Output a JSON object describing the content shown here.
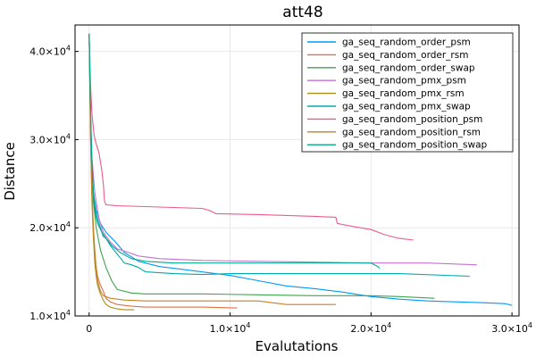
{
  "chart_data": {
    "type": "line",
    "title": "att48",
    "xlabel": "Evalutations",
    "ylabel": "Distance",
    "xlim": [
      -1000,
      30500
    ],
    "ylim": [
      10000,
      43000
    ],
    "x_ticks": [
      {
        "value": 0,
        "label": "0"
      },
      {
        "value": 10000,
        "label": "1.0×10",
        "exp": "4"
      },
      {
        "value": 20000,
        "label": "2.0×10",
        "exp": "4"
      },
      {
        "value": 30000,
        "label": "3.0×10",
        "exp": "4"
      }
    ],
    "y_ticks": [
      {
        "value": 10000,
        "label": "1.0×10",
        "exp": "4"
      },
      {
        "value": 20000,
        "label": "2.0×10",
        "exp": "4"
      },
      {
        "value": 30000,
        "label": "3.0×10",
        "exp": "4"
      },
      {
        "value": 40000,
        "label": "4.0×10",
        "exp": "4"
      }
    ],
    "grid": true,
    "legend_position": "top-right",
    "series": [
      {
        "name": "ga_seq_random_order_psm",
        "color": "#009AFA",
        "points": [
          [
            0,
            42000
          ],
          [
            100,
            33000
          ],
          [
            200,
            27000
          ],
          [
            300,
            24000
          ],
          [
            500,
            22000
          ],
          [
            800,
            20500
          ],
          [
            1200,
            19500
          ],
          [
            1800,
            18500
          ],
          [
            2500,
            17200
          ],
          [
            3500,
            16200
          ],
          [
            5000,
            15600
          ],
          [
            7000,
            15200
          ],
          [
            10000,
            14600
          ],
          [
            12000,
            14000
          ],
          [
            14000,
            13400
          ],
          [
            16000,
            13100
          ],
          [
            18000,
            12700
          ],
          [
            20000,
            12200
          ],
          [
            22000,
            11900
          ],
          [
            24000,
            11700
          ],
          [
            26000,
            11600
          ],
          [
            28000,
            11500
          ],
          [
            29500,
            11400
          ],
          [
            30000,
            11200
          ]
        ]
      },
      {
        "name": "ga_seq_random_order_rsm",
        "color": "#E26F46",
        "points": [
          [
            0,
            42000
          ],
          [
            100,
            31000
          ],
          [
            200,
            24000
          ],
          [
            300,
            20000
          ],
          [
            400,
            17000
          ],
          [
            500,
            15500
          ],
          [
            600,
            14500
          ],
          [
            800,
            13500
          ],
          [
            1000,
            12800
          ],
          [
            1200,
            12000
          ],
          [
            1500,
            11600
          ],
          [
            2000,
            11300
          ],
          [
            3000,
            11100
          ],
          [
            4000,
            11000
          ],
          [
            8000,
            11000
          ],
          [
            10500,
            10900
          ]
        ]
      },
      {
        "name": "ga_seq_random_order_swap",
        "color": "#3EA44E",
        "points": [
          [
            0,
            42000
          ],
          [
            100,
            32000
          ],
          [
            200,
            27000
          ],
          [
            300,
            23000
          ],
          [
            500,
            20000
          ],
          [
            800,
            17500
          ],
          [
            1200,
            15500
          ],
          [
            1600,
            14000
          ],
          [
            2000,
            13000
          ],
          [
            3000,
            12600
          ],
          [
            4000,
            12500
          ],
          [
            8000,
            12500
          ],
          [
            12000,
            12400
          ],
          [
            16000,
            12300
          ],
          [
            18000,
            12300
          ],
          [
            20000,
            12300
          ],
          [
            22000,
            12200
          ],
          [
            24500,
            12000
          ]
        ]
      },
      {
        "name": "ga_seq_random_pmx_psm",
        "color": "#C271D2",
        "points": [
          [
            0,
            42000
          ],
          [
            100,
            33000
          ],
          [
            200,
            28000
          ],
          [
            400,
            24000
          ],
          [
            700,
            21000
          ],
          [
            1000,
            19500
          ],
          [
            1500,
            18400
          ],
          [
            2000,
            17600
          ],
          [
            2800,
            17200
          ],
          [
            3500,
            16800
          ],
          [
            5000,
            16500
          ],
          [
            8000,
            16300
          ],
          [
            12000,
            16200
          ],
          [
            16000,
            16100
          ],
          [
            20000,
            16000
          ],
          [
            24000,
            16000
          ],
          [
            27500,
            15800
          ]
        ]
      },
      {
        "name": "ga_seq_random_pmx_rsm",
        "color": "#AC8D18",
        "points": [
          [
            0,
            42000
          ],
          [
            100,
            30000
          ],
          [
            200,
            23000
          ],
          [
            300,
            19000
          ],
          [
            400,
            16000
          ],
          [
            500,
            14500
          ],
          [
            600,
            13500
          ],
          [
            800,
            12500
          ],
          [
            1000,
            11800
          ],
          [
            1200,
            11300
          ],
          [
            1500,
            11000
          ],
          [
            2000,
            10800
          ],
          [
            2500,
            10700
          ],
          [
            3200,
            10700
          ]
        ]
      },
      {
        "name": "ga_seq_random_pmx_swap",
        "color": "#00A9AD",
        "points": [
          [
            0,
            42000
          ],
          [
            100,
            32000
          ],
          [
            200,
            27000
          ],
          [
            300,
            24000
          ],
          [
            500,
            21500
          ],
          [
            800,
            20000
          ],
          [
            1000,
            19000
          ],
          [
            1200,
            18800
          ],
          [
            1500,
            18000
          ],
          [
            2000,
            17000
          ],
          [
            2500,
            16000
          ],
          [
            3000,
            15800
          ],
          [
            3500,
            15500
          ],
          [
            4000,
            15000
          ],
          [
            6000,
            14800
          ],
          [
            8000,
            14700
          ],
          [
            10000,
            14800
          ],
          [
            14000,
            14800
          ],
          [
            18000,
            14800
          ],
          [
            22000,
            14800
          ],
          [
            27000,
            14500
          ]
        ]
      },
      {
        "name": "ga_seq_random_position_psm",
        "color": "#EC5A8A",
        "points": [
          [
            0,
            42000
          ],
          [
            100,
            36000
          ],
          [
            200,
            33000
          ],
          [
            350,
            30500
          ],
          [
            500,
            29500
          ],
          [
            700,
            28500
          ],
          [
            900,
            26500
          ],
          [
            1000,
            25000
          ],
          [
            1100,
            23000
          ],
          [
            1200,
            22600
          ],
          [
            2000,
            22500
          ],
          [
            4000,
            22400
          ],
          [
            6000,
            22300
          ],
          [
            8000,
            22200
          ],
          [
            8500,
            22000
          ],
          [
            9000,
            21600
          ],
          [
            12000,
            21500
          ],
          [
            14000,
            21400
          ],
          [
            16000,
            21300
          ],
          [
            17500,
            21200
          ],
          [
            17600,
            20500
          ],
          [
            18500,
            20200
          ],
          [
            20000,
            19800
          ],
          [
            21000,
            19200
          ],
          [
            22000,
            18800
          ],
          [
            23000,
            18600
          ]
        ]
      },
      {
        "name": "ga_seq_random_position_rsm",
        "color": "#C68226",
        "points": [
          [
            0,
            42000
          ],
          [
            100,
            30000
          ],
          [
            200,
            24000
          ],
          [
            300,
            20000
          ],
          [
            400,
            17500
          ],
          [
            500,
            15500
          ],
          [
            600,
            14000
          ],
          [
            800,
            12800
          ],
          [
            1000,
            12300
          ],
          [
            1500,
            12000
          ],
          [
            2500,
            11800
          ],
          [
            4000,
            11700
          ],
          [
            6000,
            11700
          ],
          [
            8000,
            11700
          ],
          [
            12000,
            11700
          ],
          [
            14000,
            11300
          ],
          [
            17500,
            11300
          ]
        ]
      },
      {
        "name": "ga_seq_random_position_swap",
        "color": "#00A98D",
        "points": [
          [
            0,
            42000
          ],
          [
            100,
            33000
          ],
          [
            200,
            27500
          ],
          [
            300,
            24000
          ],
          [
            400,
            22000
          ],
          [
            600,
            20500
          ],
          [
            900,
            19500
          ],
          [
            1200,
            18800
          ],
          [
            1600,
            18000
          ],
          [
            2200,
            17200
          ],
          [
            3000,
            16500
          ],
          [
            4000,
            16200
          ],
          [
            6000,
            16000
          ],
          [
            8000,
            16000
          ],
          [
            12000,
            16000
          ],
          [
            16000,
            16000
          ],
          [
            20000,
            16000
          ],
          [
            20500,
            15600
          ],
          [
            20600,
            15400
          ]
        ]
      }
    ]
  }
}
